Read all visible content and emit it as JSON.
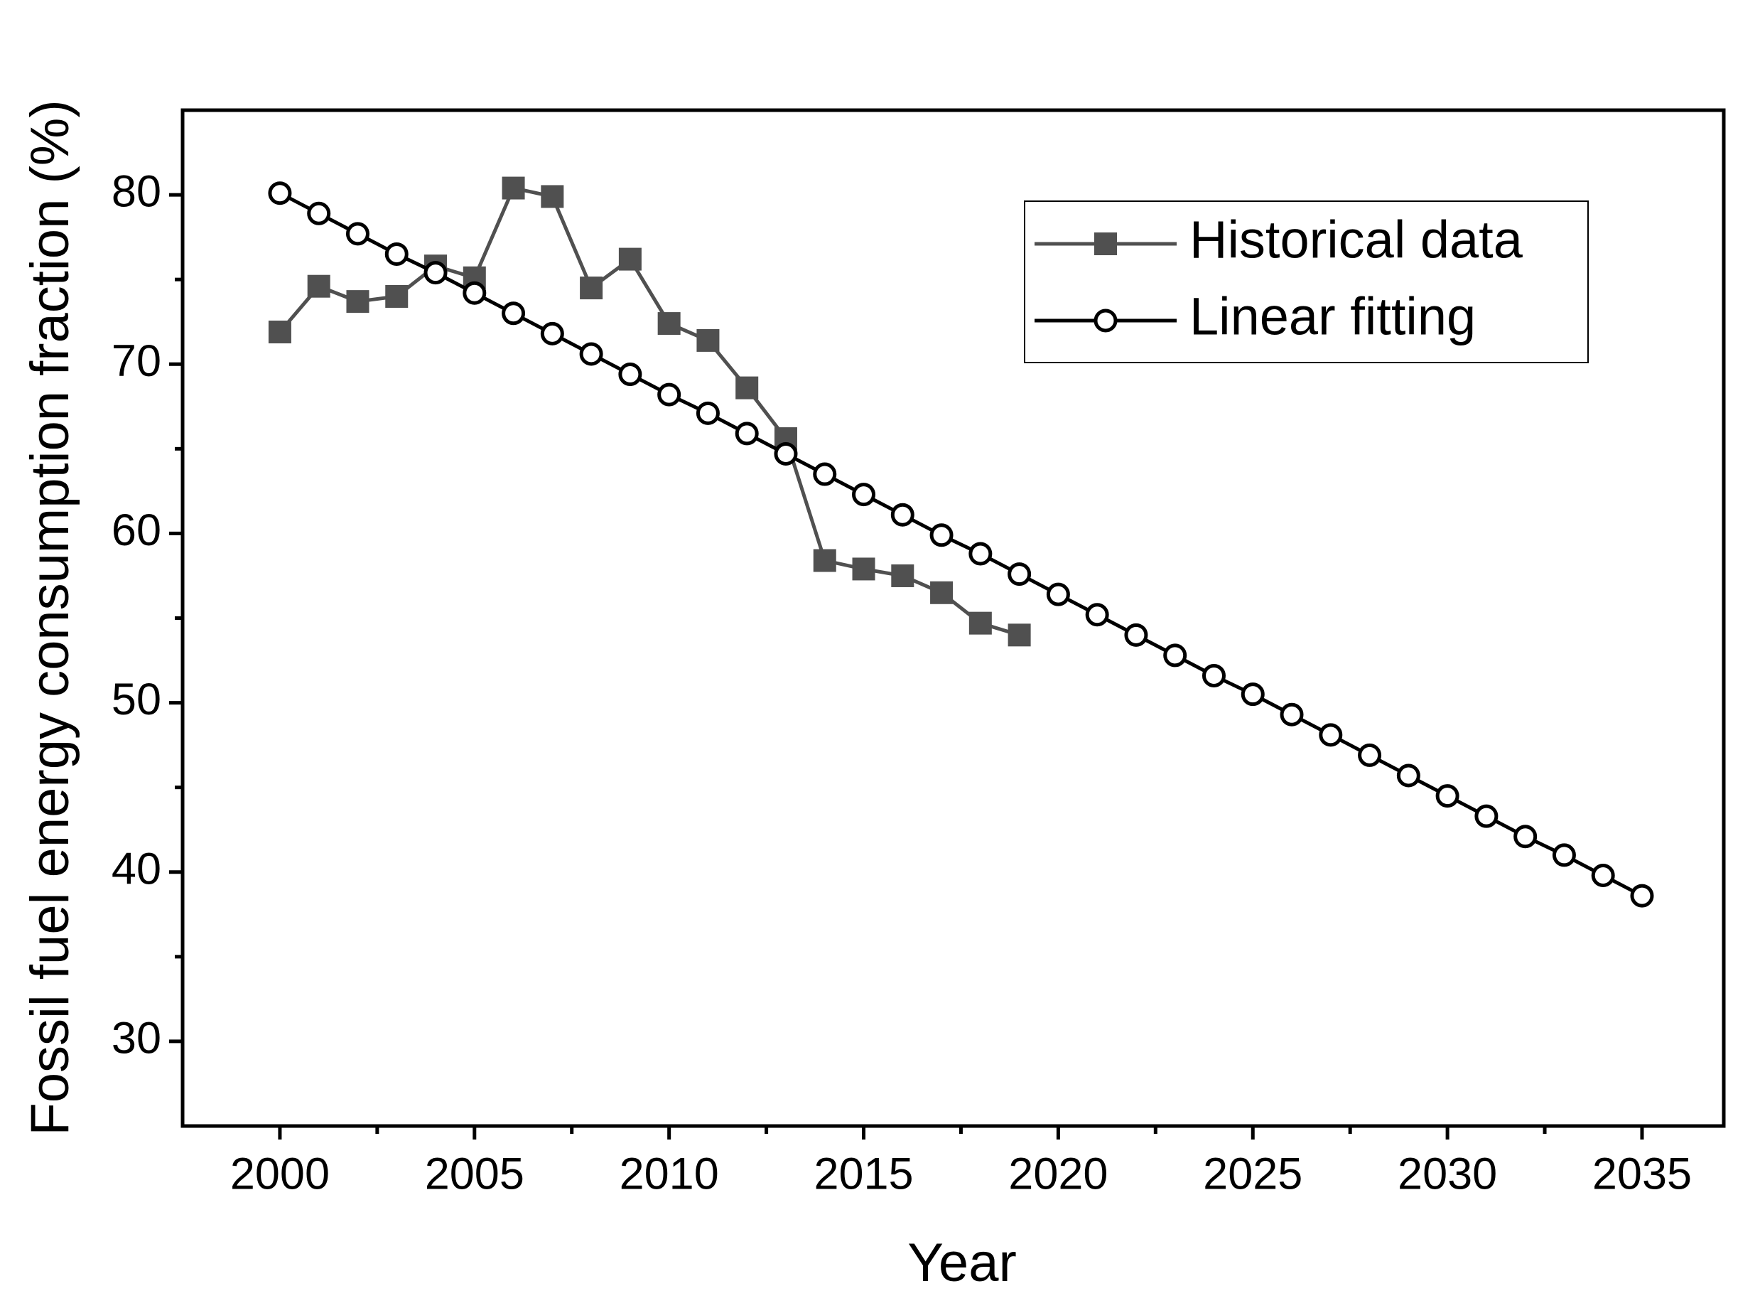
{
  "chart_data": {
    "type": "line",
    "xlabel": "Year",
    "ylabel": "Fossil fuel energy consumption fraction (%)",
    "xlim": [
      1997.5,
      2037.1
    ],
    "ylim": [
      25,
      85
    ],
    "xticks": [
      2000,
      2005,
      2010,
      2015,
      2020,
      2025,
      2030,
      2035
    ],
    "yticks": [
      30,
      40,
      50,
      60,
      70,
      80
    ],
    "xminorticks": [
      2002.5,
      2007.5,
      2012.5,
      2017.5,
      2022.5,
      2027.5,
      2032.5
    ],
    "yminorticks": [
      35,
      45,
      55,
      65,
      75
    ],
    "grid": false,
    "legend": "upper right",
    "series": [
      {
        "name": "Historical data",
        "color": "#505050",
        "marker": "square",
        "x": [
          2000,
          2001,
          2002,
          2003,
          2004,
          2005,
          2006,
          2007,
          2008,
          2009,
          2010,
          2011,
          2012,
          2013,
          2014,
          2015,
          2016,
          2017,
          2018,
          2019
        ],
        "values": [
          71.9,
          74.6,
          73.7,
          74.0,
          75.8,
          75.1,
          80.4,
          79.9,
          74.5,
          76.2,
          72.4,
          71.4,
          68.6,
          65.6,
          58.4,
          57.9,
          57.5,
          56.5,
          54.7,
          54.0
        ]
      },
      {
        "name": "Linear fitting",
        "color": "#000000",
        "marker": "circle",
        "x": [
          2000,
          2001,
          2002,
          2003,
          2004,
          2005,
          2006,
          2007,
          2008,
          2009,
          2010,
          2011,
          2012,
          2013,
          2014,
          2015,
          2016,
          2017,
          2018,
          2019,
          2020,
          2021,
          2022,
          2023,
          2024,
          2025,
          2026,
          2027,
          2028,
          2029,
          2030,
          2031,
          2032,
          2033,
          2034,
          2035
        ],
        "values": [
          80.1,
          78.9,
          77.7,
          76.5,
          75.4,
          74.2,
          73.0,
          71.8,
          70.6,
          69.4,
          68.2,
          67.1,
          65.9,
          64.7,
          63.5,
          62.3,
          61.1,
          59.9,
          58.8,
          57.6,
          56.4,
          55.2,
          54.0,
          52.8,
          51.6,
          50.5,
          49.3,
          48.1,
          46.9,
          45.7,
          44.5,
          43.3,
          42.1,
          41.0,
          39.8,
          38.6
        ]
      }
    ]
  }
}
